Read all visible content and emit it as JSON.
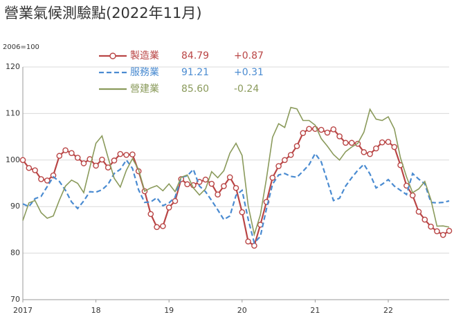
{
  "chart_data": {
    "type": "line",
    "title": "營業氣候測驗點(2022年11月)",
    "y_label": "2006=100",
    "categories": [
      "2017",
      null,
      null,
      null,
      null,
      null,
      null,
      null,
      null,
      null,
      null,
      null,
      "18",
      null,
      null,
      null,
      null,
      null,
      null,
      null,
      null,
      null,
      null,
      null,
      "19",
      null,
      null,
      null,
      null,
      null,
      null,
      null,
      null,
      null,
      null,
      null,
      "20",
      null,
      null,
      null,
      null,
      null,
      null,
      null,
      null,
      null,
      null,
      null,
      "21",
      null,
      null,
      null,
      null,
      null,
      null,
      null,
      null,
      null,
      null,
      null,
      "22",
      null,
      null,
      null,
      null,
      null,
      null,
      null,
      null,
      null,
      null
    ],
    "ylim": [
      70,
      120
    ],
    "yticks": [
      70,
      80,
      90,
      100,
      110,
      120
    ],
    "grid": true,
    "series": [
      {
        "name": "製造業",
        "color": "#b94545",
        "style": "solid-marker",
        "latest": {
          "value": 84.79,
          "label": "84.79"
        },
        "change": {
          "value": 0.87,
          "label": "+0.87"
        },
        "values": [
          100,
          98.3,
          97.8,
          95.9,
          95.6,
          96.7,
          100.9,
          102.1,
          101.5,
          100.5,
          99.3,
          100.2,
          98.8,
          100.1,
          98.4,
          99.9,
          101.3,
          101.1,
          101.2,
          97.6,
          93.3,
          88.4,
          85.6,
          85.8,
          89.8,
          91.2,
          95.9,
          94.8,
          94.6,
          95.3,
          95.8,
          94.9,
          92.6,
          94.4,
          96.3,
          94.0,
          88.8,
          82.5,
          81.6,
          86.1,
          91.0,
          96.2,
          98.7,
          100.0,
          101.1,
          103.0,
          105.8,
          106.7,
          106.7,
          106.5,
          105.9,
          106.6,
          105.1,
          103.7,
          103.7,
          103.5,
          101.7,
          101.3,
          102.5,
          103.8,
          103.9,
          102.8,
          98.9,
          94.5,
          92.4,
          88.9,
          87.2,
          85.7,
          84.7,
          83.92,
          84.79
        ]
      },
      {
        "name": "服務業",
        "color": "#4a8bd1",
        "style": "dashed",
        "latest": {
          "value": 91.21,
          "label": "91.21"
        },
        "change": {
          "value": 0.31,
          "label": "+0.31"
        },
        "values": [
          90.6,
          90.0,
          91.7,
          92.2,
          94.3,
          96.4,
          95.4,
          93.5,
          91.0,
          89.6,
          91.2,
          93.2,
          93.1,
          93.6,
          94.8,
          97.1,
          98.0,
          100.0,
          98.2,
          93.6,
          90.9,
          91.0,
          91.9,
          90.2,
          90.8,
          92.0,
          96.3,
          96.6,
          98.0,
          94.4,
          93.2,
          91.3,
          89.3,
          87.2,
          88.0,
          92.4,
          93.5,
          87.3,
          82.2,
          83.6,
          89.5,
          94.8,
          96.8,
          97.1,
          96.5,
          96.3,
          97.6,
          99.0,
          101.4,
          99.6,
          95.5,
          91.3,
          91.8,
          94.4,
          96.2,
          97.8,
          99.1,
          97.0,
          94.0,
          94.8,
          95.8,
          94.4,
          93.5,
          92.6,
          97.1,
          95.9,
          94.9,
          90.9,
          90.8,
          90.9,
          91.21
        ]
      },
      {
        "name": "營建業",
        "color": "#8a9a5b",
        "style": "solid",
        "latest": {
          "value": 85.6,
          "label": "85.60"
        },
        "change": {
          "value": -0.24,
          "label": "-0.24"
        },
        "values": [
          87.0,
          90.8,
          91.3,
          88.7,
          87.5,
          88.0,
          91.4,
          94.4,
          95.7,
          95.0,
          93.0,
          98.4,
          103.6,
          105.2,
          100.5,
          96.1,
          94.2,
          97.8,
          100.3,
          98.0,
          93.3,
          94.0,
          94.5,
          93.4,
          94.9,
          93.2,
          96.3,
          96.8,
          94.0,
          92.5,
          93.8,
          97.5,
          96.2,
          97.7,
          101.5,
          103.6,
          101.0,
          90.2,
          84.0,
          88.2,
          96.0,
          104.9,
          107.8,
          107.0,
          111.3,
          111.0,
          108.5,
          108.5,
          107.5,
          104.6,
          103.0,
          101.2,
          100.0,
          101.8,
          102.8,
          103.6,
          106.0,
          110.9,
          108.8,
          108.5,
          109.3,
          106.7,
          100.5,
          96.4,
          93.0,
          93.8,
          95.4,
          91.5,
          85.8,
          85.84,
          85.6
        ]
      }
    ]
  }
}
